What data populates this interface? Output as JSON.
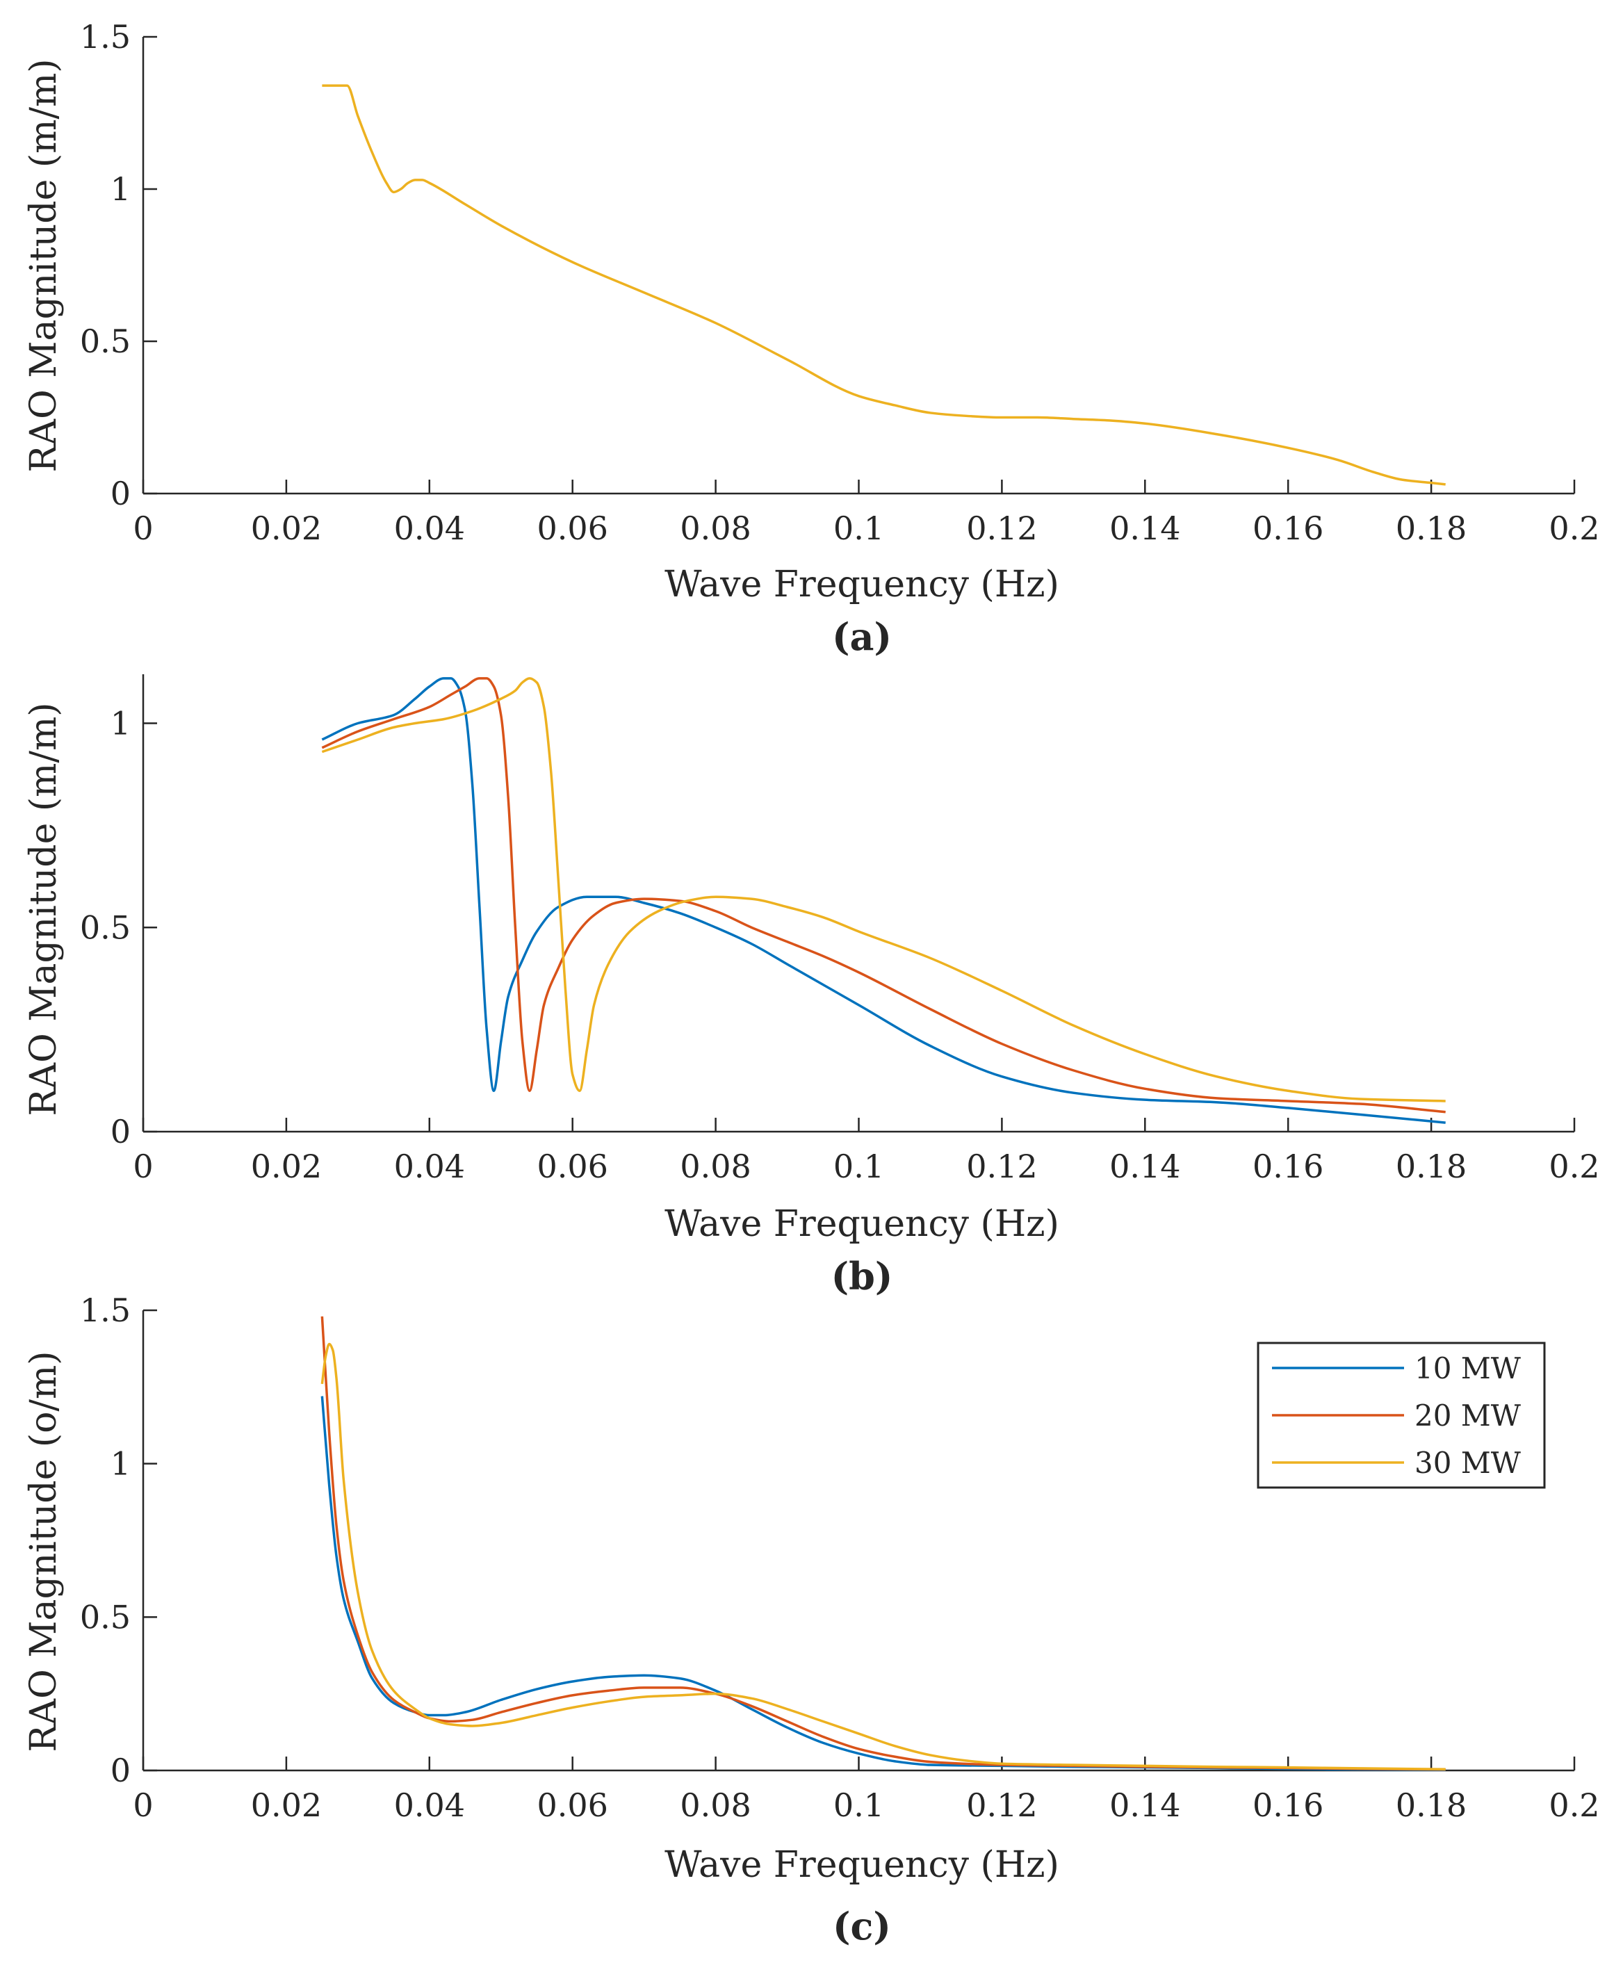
{
  "colors": {
    "s10": "#0072BD",
    "s20": "#D95319",
    "s30": "#EDB120",
    "axis": "#262626"
  },
  "legend": {
    "entries": [
      "10 MW",
      "20 MW",
      "30 MW"
    ]
  },
  "chart_data": [
    {
      "type": "line",
      "panel_label": "(a)",
      "xlabel": "Wave Frequency (Hz)",
      "ylabel": "RAO Magnitude (m/m)",
      "xlim": [
        0,
        0.2
      ],
      "ylim": [
        0,
        1.5
      ],
      "xticks": [
        0,
        0.02,
        0.04,
        0.06,
        0.08,
        0.1,
        0.12,
        0.14,
        0.16,
        0.18,
        0.2
      ],
      "xtick_labels": [
        "0",
        "0.02",
        "0.04",
        "0.06",
        "0.08",
        "0.1",
        "0.12",
        "0.14",
        "0.16",
        "0.18",
        "0.2"
      ],
      "yticks": [
        0,
        0.5,
        1,
        1.5
      ],
      "ytick_labels": [
        "0",
        "0.5",
        "1",
        "1.5"
      ],
      "series": [
        {
          "name": "30 MW",
          "color_key": "s30",
          "x": [
            0.025,
            0.0285,
            0.03,
            0.032,
            0.034,
            0.035,
            0.036,
            0.037,
            0.038,
            0.039,
            0.04,
            0.045,
            0.05,
            0.06,
            0.07,
            0.08,
            0.09,
            0.1,
            0.105,
            0.11,
            0.115,
            0.12,
            0.125,
            0.13,
            0.135,
            0.14,
            0.15,
            0.16,
            0.167,
            0.172,
            0.176,
            0.18,
            0.182
          ],
          "y": [
            1.34,
            1.34,
            1.24,
            1.12,
            1.02,
            0.99,
            1.0,
            1.02,
            1.03,
            1.03,
            1.02,
            0.95,
            0.88,
            0.76,
            0.66,
            0.56,
            0.44,
            0.32,
            0.29,
            0.265,
            0.255,
            0.25,
            0.25,
            0.245,
            0.24,
            0.23,
            0.195,
            0.15,
            0.11,
            0.07,
            0.045,
            0.035,
            0.03
          ]
        }
      ]
    },
    {
      "type": "line",
      "panel_label": "(b)",
      "xlabel": "Wave Frequency (Hz)",
      "ylabel": "RAO Magnitude (m/m)",
      "xlim": [
        0,
        0.2
      ],
      "ylim": [
        0,
        1.12
      ],
      "xticks": [
        0,
        0.02,
        0.04,
        0.06,
        0.08,
        0.1,
        0.12,
        0.14,
        0.16,
        0.18,
        0.2
      ],
      "xtick_labels": [
        "0",
        "0.02",
        "0.04",
        "0.06",
        "0.08",
        "0.1",
        "0.12",
        "0.14",
        "0.16",
        "0.18",
        "0.2"
      ],
      "yticks": [
        0,
        0.5,
        1
      ],
      "ytick_labels": [
        "0",
        "0.5",
        "1"
      ],
      "series": [
        {
          "name": "10 MW",
          "color_key": "s10",
          "x": [
            0.025,
            0.03,
            0.035,
            0.038,
            0.04,
            0.042,
            0.043,
            0.044,
            0.045,
            0.046,
            0.047,
            0.048,
            0.049,
            0.05,
            0.051,
            0.053,
            0.055,
            0.058,
            0.062,
            0.066,
            0.07,
            0.075,
            0.08,
            0.085,
            0.09,
            0.095,
            0.1,
            0.11,
            0.12,
            0.13,
            0.14,
            0.15,
            0.16,
            0.17,
            0.182
          ],
          "y": [
            0.96,
            1.0,
            1.02,
            1.06,
            1.09,
            1.11,
            1.11,
            1.09,
            1.03,
            0.85,
            0.55,
            0.25,
            0.1,
            0.22,
            0.33,
            0.42,
            0.49,
            0.55,
            0.575,
            0.575,
            0.56,
            0.535,
            0.5,
            0.46,
            0.41,
            0.36,
            0.31,
            0.21,
            0.135,
            0.095,
            0.078,
            0.072,
            0.058,
            0.042,
            0.022
          ]
        },
        {
          "name": "20 MW",
          "color_key": "s20",
          "x": [
            0.025,
            0.03,
            0.035,
            0.04,
            0.043,
            0.045,
            0.047,
            0.048,
            0.049,
            0.05,
            0.051,
            0.052,
            0.053,
            0.054,
            0.055,
            0.056,
            0.058,
            0.06,
            0.063,
            0.066,
            0.07,
            0.075,
            0.08,
            0.085,
            0.09,
            0.095,
            0.1,
            0.11,
            0.12,
            0.13,
            0.14,
            0.15,
            0.16,
            0.17,
            0.182
          ],
          "y": [
            0.94,
            0.98,
            1.01,
            1.04,
            1.07,
            1.09,
            1.11,
            1.11,
            1.09,
            1.02,
            0.82,
            0.5,
            0.22,
            0.1,
            0.2,
            0.31,
            0.4,
            0.47,
            0.53,
            0.56,
            0.57,
            0.565,
            0.54,
            0.5,
            0.465,
            0.43,
            0.39,
            0.3,
            0.215,
            0.15,
            0.105,
            0.082,
            0.075,
            0.068,
            0.048
          ]
        },
        {
          "name": "30 MW",
          "color_key": "s30",
          "x": [
            0.025,
            0.03,
            0.035,
            0.038,
            0.042,
            0.046,
            0.05,
            0.052,
            0.053,
            0.054,
            0.055,
            0.056,
            0.057,
            0.058,
            0.059,
            0.06,
            0.061,
            0.062,
            0.063,
            0.065,
            0.068,
            0.072,
            0.076,
            0.08,
            0.085,
            0.09,
            0.095,
            0.1,
            0.11,
            0.12,
            0.13,
            0.14,
            0.15,
            0.16,
            0.17,
            0.182
          ],
          "y": [
            0.93,
            0.96,
            0.99,
            1.0,
            1.01,
            1.03,
            1.06,
            1.08,
            1.1,
            1.11,
            1.1,
            1.04,
            0.88,
            0.62,
            0.35,
            0.14,
            0.1,
            0.2,
            0.31,
            0.41,
            0.49,
            0.54,
            0.565,
            0.575,
            0.57,
            0.55,
            0.525,
            0.49,
            0.425,
            0.345,
            0.26,
            0.19,
            0.135,
            0.1,
            0.08,
            0.075
          ]
        }
      ]
    },
    {
      "type": "line",
      "panel_label": "(c)",
      "xlabel": "Wave Frequency (Hz)",
      "ylabel": "RAO Magnitude (o/m)",
      "xlim": [
        0,
        0.2
      ],
      "ylim": [
        0,
        1.5
      ],
      "xticks": [
        0,
        0.02,
        0.04,
        0.06,
        0.08,
        0.1,
        0.12,
        0.14,
        0.16,
        0.18,
        0.2
      ],
      "xtick_labels": [
        "0",
        "0.02",
        "0.04",
        "0.06",
        "0.08",
        "0.1",
        "0.12",
        "0.14",
        "0.16",
        "0.18",
        "0.2"
      ],
      "yticks": [
        0,
        0.5,
        1,
        1.5
      ],
      "ytick_labels": [
        "0",
        "0.5",
        "1",
        "1.5"
      ],
      "legend_position": "top-right",
      "series": [
        {
          "name": "10 MW",
          "color_key": "s10",
          "x": [
            0.025,
            0.026,
            0.027,
            0.028,
            0.03,
            0.032,
            0.035,
            0.038,
            0.04,
            0.042,
            0.045,
            0.05,
            0.055,
            0.06,
            0.065,
            0.07,
            0.075,
            0.08,
            0.085,
            0.09,
            0.095,
            0.1,
            0.105,
            0.11,
            0.12,
            0.13,
            0.14,
            0.15,
            0.16,
            0.17,
            0.182
          ],
          "y": [
            1.22,
            0.93,
            0.7,
            0.56,
            0.42,
            0.3,
            0.22,
            0.19,
            0.18,
            0.18,
            0.19,
            0.23,
            0.265,
            0.29,
            0.305,
            0.31,
            0.3,
            0.26,
            0.2,
            0.14,
            0.09,
            0.055,
            0.03,
            0.018,
            0.015,
            0.012,
            0.01,
            0.008,
            0.005,
            0.003,
            0.002
          ]
        },
        {
          "name": "20 MW",
          "color_key": "s20",
          "x": [
            0.025,
            0.026,
            0.027,
            0.028,
            0.03,
            0.032,
            0.035,
            0.038,
            0.04,
            0.043,
            0.046,
            0.05,
            0.055,
            0.06,
            0.065,
            0.07,
            0.075,
            0.08,
            0.085,
            0.09,
            0.095,
            0.1,
            0.105,
            0.11,
            0.12,
            0.13,
            0.14,
            0.15,
            0.16,
            0.17,
            0.182
          ],
          "y": [
            1.48,
            1.1,
            0.8,
            0.62,
            0.44,
            0.32,
            0.23,
            0.19,
            0.17,
            0.16,
            0.165,
            0.19,
            0.22,
            0.245,
            0.26,
            0.27,
            0.27,
            0.25,
            0.21,
            0.16,
            0.11,
            0.07,
            0.045,
            0.028,
            0.018,
            0.015,
            0.012,
            0.01,
            0.008,
            0.005,
            0.003
          ]
        },
        {
          "name": "30 MW",
          "color_key": "s30",
          "x": [
            0.025,
            0.0255,
            0.026,
            0.0265,
            0.027,
            0.028,
            0.03,
            0.032,
            0.035,
            0.038,
            0.04,
            0.043,
            0.046,
            0.05,
            0.055,
            0.06,
            0.065,
            0.07,
            0.075,
            0.08,
            0.085,
            0.09,
            0.095,
            0.1,
            0.105,
            0.11,
            0.115,
            0.12,
            0.13,
            0.14,
            0.15,
            0.16,
            0.17,
            0.182
          ],
          "y": [
            1.26,
            1.35,
            1.39,
            1.37,
            1.28,
            0.95,
            0.58,
            0.39,
            0.26,
            0.2,
            0.17,
            0.15,
            0.145,
            0.155,
            0.18,
            0.205,
            0.225,
            0.24,
            0.245,
            0.25,
            0.235,
            0.2,
            0.16,
            0.12,
            0.08,
            0.05,
            0.032,
            0.022,
            0.018,
            0.015,
            0.012,
            0.01,
            0.007,
            0.004
          ]
        }
      ]
    }
  ]
}
